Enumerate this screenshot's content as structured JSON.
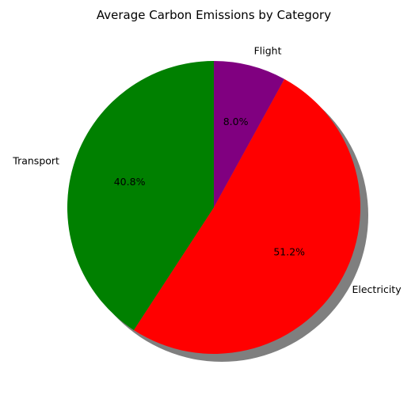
{
  "chart_data": {
    "type": "pie",
    "title": "Average Carbon Emissions by Category",
    "slices": [
      {
        "label": "Flight",
        "value": 8.0,
        "pct_label": "8.0%",
        "color": "#800080"
      },
      {
        "label": "Electricity",
        "value": 51.2,
        "pct_label": "51.2%",
        "color": "#ff0000"
      },
      {
        "label": "Transport",
        "value": 40.8,
        "pct_label": "40.8%",
        "color": "#008000"
      }
    ],
    "start_angle_deg": 90,
    "direction": "clockwise",
    "shadow": true
  }
}
